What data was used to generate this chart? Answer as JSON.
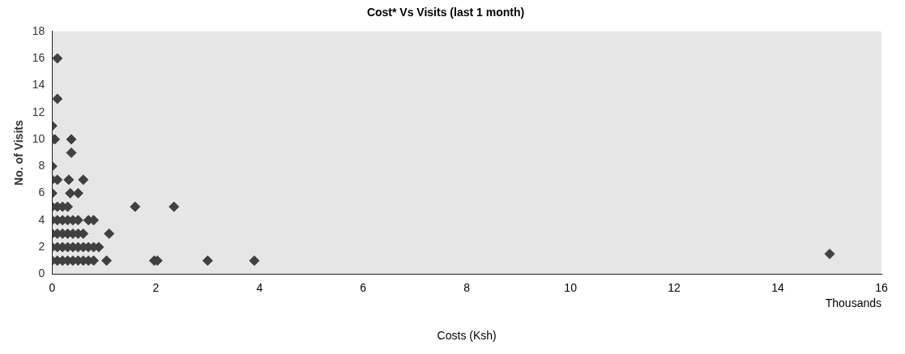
{
  "chart_data": {
    "type": "scatter",
    "title": "Cost* Vs Visits (last 1 month)",
    "xlabel": "Costs (Ksh)",
    "ylabel": "No. of Visits",
    "annotations": [
      "Thousands"
    ],
    "marker": "diamond",
    "grid": false,
    "legend": false,
    "xlim": [
      0,
      16
    ],
    "xticks": [
      0,
      2,
      4,
      6,
      8,
      10,
      12,
      14,
      16
    ],
    "ylim": [
      0,
      18
    ],
    "yticks": [
      0,
      2,
      4,
      6,
      8,
      10,
      12,
      14,
      16,
      18
    ],
    "series": [
      {
        "color": "#404040",
        "x": [
          0.1,
          0.1,
          0,
          0,
          0.05,
          0.37,
          0.37,
          0,
          0,
          0.1,
          0.32,
          0.6,
          0,
          0.35,
          0.5,
          0,
          0.1,
          0.2,
          0.3,
          1.6,
          2.35,
          0,
          0.1,
          0.2,
          0.3,
          0.4,
          0.5,
          0.7,
          0.8,
          0,
          0.1,
          0.2,
          0.3,
          0.4,
          0.5,
          0.6,
          1.1,
          0,
          0.1,
          0.2,
          0.3,
          0.4,
          0.5,
          0.6,
          0.7,
          0.8,
          0.9,
          0,
          0.1,
          0.2,
          0.3,
          0.4,
          0.5,
          0.6,
          0.7,
          0.8,
          1.05,
          1.97,
          2.03,
          3,
          3.9,
          15
        ],
        "values": [
          16,
          13,
          11,
          10,
          10,
          10,
          9,
          8,
          7,
          7,
          7,
          7,
          6,
          6,
          6,
          5,
          5,
          5,
          5,
          5,
          5,
          4,
          4,
          4,
          4,
          4,
          4,
          4,
          4,
          3,
          3,
          3,
          3,
          3,
          3,
          3,
          3,
          2,
          2,
          2,
          2,
          2,
          2,
          2,
          2,
          2,
          2,
          1,
          1,
          1,
          1,
          1,
          1,
          1,
          1,
          1,
          1,
          1,
          1,
          1,
          1,
          1.5
        ]
      }
    ]
  }
}
